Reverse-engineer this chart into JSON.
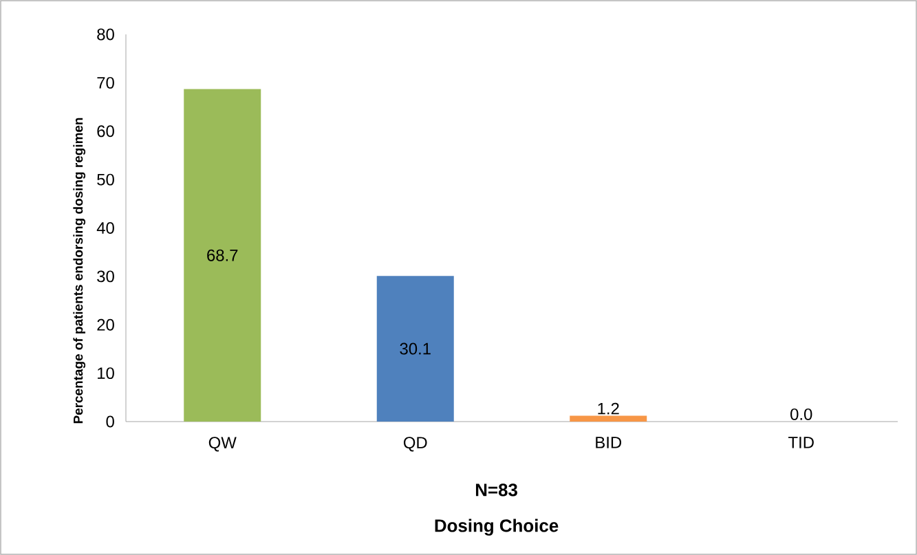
{
  "chart_data": {
    "type": "bar",
    "xlabel": "Dosing Choice",
    "ylabel": "Percentage of patients endorsing dosing regimen",
    "annotations": [
      "N=83"
    ],
    "categories": [
      "QW",
      "QD",
      "BID",
      "TID"
    ],
    "values": [
      68.7,
      30.1,
      1.2,
      0.0
    ],
    "colors": [
      "#9bbb59",
      "#4f81bd",
      "#f79646",
      "#c0504d"
    ],
    "value_labels": [
      "68.7",
      "30.1",
      "1.2",
      "0.0"
    ],
    "ylim": [
      0,
      80
    ],
    "yticks": [
      0,
      10,
      20,
      30,
      40,
      50,
      60,
      70,
      80
    ],
    "grid": false
  }
}
